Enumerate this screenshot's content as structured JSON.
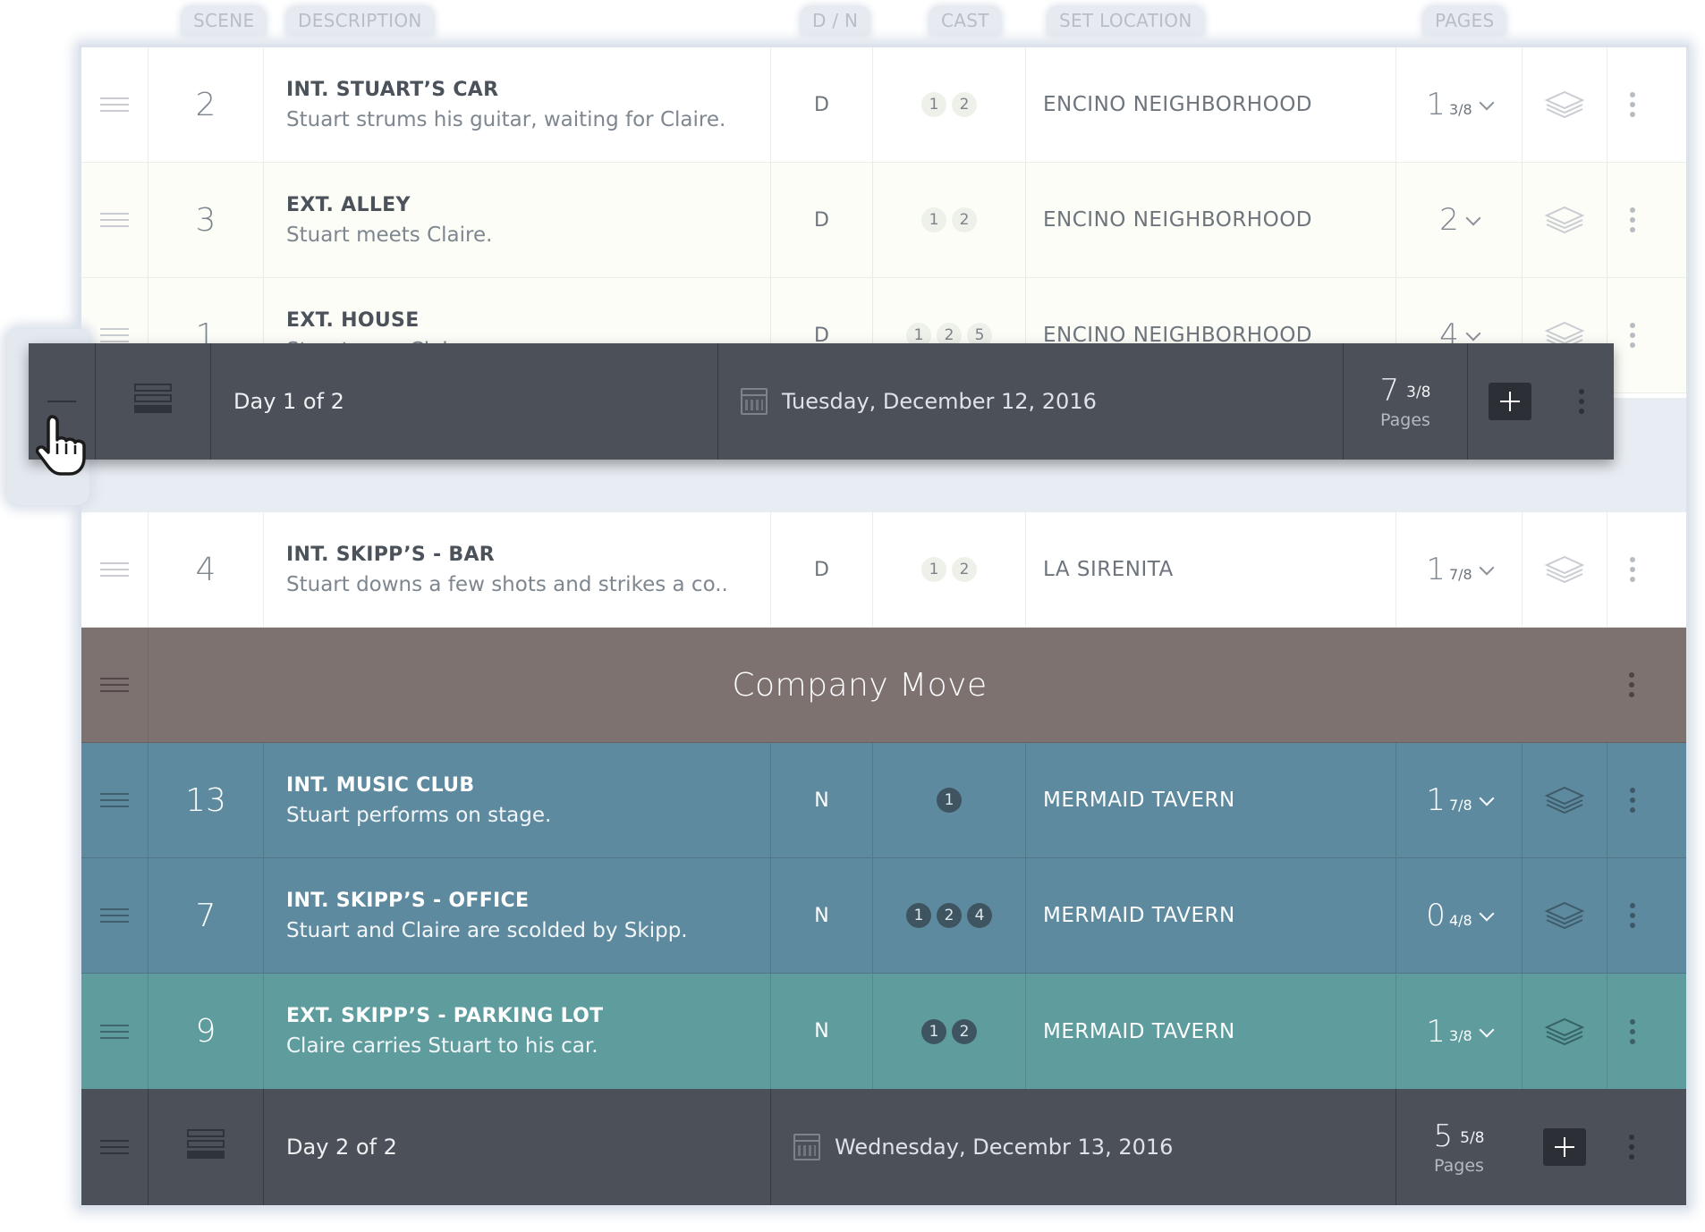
{
  "columns": {
    "scene": "SCENE",
    "description": "DESCRIPTION",
    "dn": "D / N",
    "cast": "CAST",
    "location": "SET LOCATION",
    "pages": "PAGES"
  },
  "rows_top": [
    {
      "scene": "2",
      "title": "INT. STUART’S CAR",
      "desc": "Stuart strums his guitar, waiting for Claire.",
      "dn": "D",
      "cast": [
        "1",
        "2"
      ],
      "location": "ENCINO NEIGHBORHOOD",
      "pages_whole": "1",
      "pages_frac": "3/8",
      "bg": "white"
    },
    {
      "scene": "3",
      "title": "EXT. ALLEY",
      "desc": "Stuart meets Claire.",
      "dn": "D",
      "cast": [
        "1",
        "2"
      ],
      "location": "ENCINO NEIGHBORHOOD",
      "pages_whole": "2",
      "pages_frac": "",
      "bg": "cream"
    },
    {
      "scene": "1",
      "title": "EXT. HOUSE",
      "desc": "Stuart sees Claire.",
      "dn": "D",
      "cast": [
        "1",
        "2",
        "5"
      ],
      "location": "ENCINO NEIGHBORHOOD",
      "pages_whole": "4",
      "pages_frac": "",
      "bg": "cream"
    }
  ],
  "row_bar": {
    "scene": "4",
    "title": "INT. SKIPP’S - BAR",
    "desc": "Stuart downs a few shots and strikes a co..",
    "dn": "D",
    "cast": [
      "1",
      "2"
    ],
    "location": "LA SIRENITA",
    "pages_whole": "1",
    "pages_frac": "7/8"
  },
  "company_move": {
    "label": "Company Move",
    "color": "#7d7270"
  },
  "rows_colored": [
    {
      "scene": "13",
      "title": "INT. MUSIC CLUB",
      "desc": "Stuart performs on stage.",
      "dn": "N",
      "cast": [
        "1"
      ],
      "location": "MERMAID TAVERN",
      "pages_whole": "1",
      "pages_frac": "7/8",
      "color": "#5e8a9f"
    },
    {
      "scene": "7",
      "title": "INT. SKIPP’S - OFFICE",
      "desc": "Stuart and Claire are scolded by Skipp.",
      "dn": "N",
      "cast": [
        "1",
        "2",
        "4"
      ],
      "location": "MERMAID TAVERN",
      "pages_whole": "0",
      "pages_frac": "4/8",
      "color": "#5e8a9f"
    },
    {
      "scene": "9",
      "title": "EXT. SKIPP’S - PARKING LOT",
      "desc": "Claire carries Stuart to his car.",
      "dn": "N",
      "cast": [
        "1",
        "2"
      ],
      "location": "MERMAID TAVERN",
      "pages_whole": "1",
      "pages_frac": "3/8",
      "color": "#5e9c9e"
    }
  ],
  "day1": {
    "label": "Day 1 of 2",
    "date": "Tuesday, December 12, 2016",
    "pages_whole": "7",
    "pages_frac": "3/8",
    "pages_label": "Pages"
  },
  "day2": {
    "label": "Day 2 of 2",
    "date": "Wednesday, Decembr 13, 2016",
    "pages_whole": "5",
    "pages_frac": "5/8",
    "pages_label": "Pages"
  },
  "icons": {
    "drag": "drag-handle-icon",
    "stack": "layers-icon",
    "more": "more-vertical-icon",
    "calendar": "calendar-icon",
    "add": "plus-icon",
    "board": "stripboard-icon",
    "cursor": "hand-cursor-icon"
  }
}
